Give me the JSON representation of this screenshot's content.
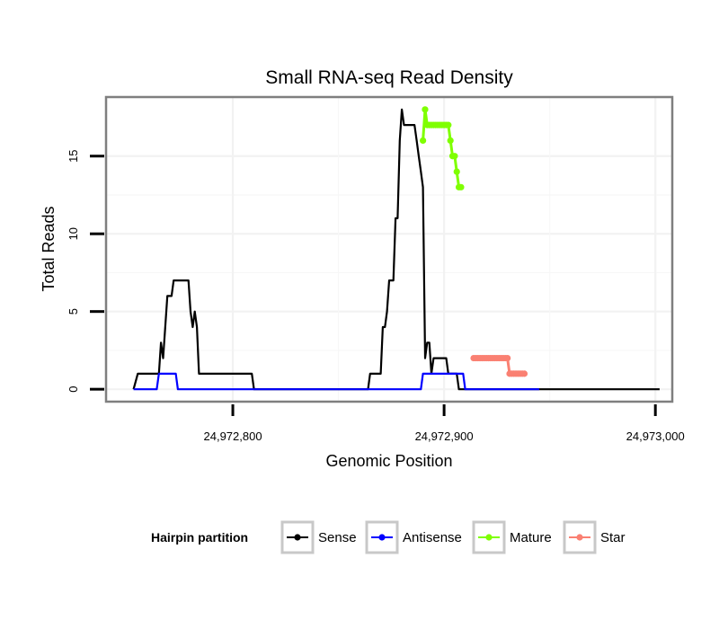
{
  "chart_data": {
    "type": "line",
    "title": "Small RNA-seq Read Density",
    "xlabel": "Genomic Position",
    "ylabel": "Total Reads",
    "xlim": [
      24972740,
      24973008
    ],
    "ylim": [
      -0.8,
      18.8
    ],
    "x_ticks": [
      24972800,
      24972900,
      24973000
    ],
    "x_tick_labels": [
      "24,972,800",
      "24,972,900",
      "24,973,000"
    ],
    "y_ticks": [
      0,
      5,
      10,
      15
    ],
    "y_tick_labels": [
      "0",
      "5",
      "10",
      "15"
    ],
    "grid": true,
    "legend": {
      "title": "Hairpin partition",
      "position": "bottom",
      "entries": [
        {
          "name": "Sense",
          "color": "#000000"
        },
        {
          "name": "Antisense",
          "color": "#0000ff"
        },
        {
          "name": "Mature",
          "color": "#7fff00"
        },
        {
          "name": "Star",
          "color": "#fa8072"
        }
      ]
    },
    "series": [
      {
        "name": "Sense",
        "color": "#000000",
        "kind": "line",
        "points": [
          [
            24972753,
            0
          ],
          [
            24972755,
            1
          ],
          [
            24972765,
            1
          ],
          [
            24972766,
            3
          ],
          [
            24972767,
            2
          ],
          [
            24972769,
            6
          ],
          [
            24972771,
            6
          ],
          [
            24972772,
            7
          ],
          [
            24972777,
            7
          ],
          [
            24972779,
            7
          ],
          [
            24972780,
            5
          ],
          [
            24972781,
            4
          ],
          [
            24972782,
            5
          ],
          [
            24972783,
            4
          ],
          [
            24972784,
            1
          ],
          [
            24972809,
            1
          ],
          [
            24972810,
            0
          ],
          [
            24972864,
            0
          ],
          [
            24972865,
            1
          ],
          [
            24972870,
            1
          ],
          [
            24972871,
            4
          ],
          [
            24972872,
            4
          ],
          [
            24972873,
            5
          ],
          [
            24972874,
            7
          ],
          [
            24972876,
            7
          ],
          [
            24972877,
            11
          ],
          [
            24972878,
            11
          ],
          [
            24972879,
            16
          ],
          [
            24972880,
            18
          ],
          [
            24972881,
            17
          ],
          [
            24972882,
            17
          ],
          [
            24972883,
            17
          ],
          [
            24972884,
            17
          ],
          [
            24972885,
            17
          ],
          [
            24972886,
            17
          ],
          [
            24972887,
            16
          ],
          [
            24972888,
            15
          ],
          [
            24972889,
            14
          ],
          [
            24972890,
            13
          ],
          [
            24972891,
            2
          ],
          [
            24972892,
            3
          ],
          [
            24972893,
            3
          ],
          [
            24972894,
            1
          ],
          [
            24972895,
            2
          ],
          [
            24972896,
            2
          ],
          [
            24972901,
            2
          ],
          [
            24972902,
            1
          ],
          [
            24972906,
            1
          ],
          [
            24972907,
            0
          ],
          [
            24973002,
            0
          ]
        ]
      },
      {
        "name": "Antisense",
        "color": "#0000ff",
        "kind": "line",
        "points": [
          [
            24972753,
            0
          ],
          [
            24972764,
            0
          ],
          [
            24972765,
            1
          ],
          [
            24972772,
            1
          ],
          [
            24972773,
            1
          ],
          [
            24972774,
            0
          ],
          [
            24972889,
            0
          ],
          [
            24972890,
            1
          ],
          [
            24972909,
            1
          ],
          [
            24972910,
            0
          ],
          [
            24972945,
            0
          ]
        ]
      },
      {
        "name": "Mature",
        "color": "#7fff00",
        "kind": "points",
        "points": [
          [
            24972890,
            16
          ],
          [
            24972891,
            18
          ],
          [
            24972892,
            17
          ],
          [
            24972893,
            17
          ],
          [
            24972894,
            17
          ],
          [
            24972895,
            17
          ],
          [
            24972896,
            17
          ],
          [
            24972897,
            17
          ],
          [
            24972898,
            17
          ],
          [
            24972899,
            17
          ],
          [
            24972900,
            17
          ],
          [
            24972901,
            17
          ],
          [
            24972902,
            17
          ],
          [
            24972903,
            16
          ],
          [
            24972904,
            15
          ],
          [
            24972905,
            15
          ],
          [
            24972906,
            14
          ],
          [
            24972907,
            13
          ],
          [
            24972908,
            13
          ]
        ]
      },
      {
        "name": "Star",
        "color": "#fa8072",
        "kind": "points",
        "points": [
          [
            24972914,
            2
          ],
          [
            24972915,
            2
          ],
          [
            24972916,
            2
          ],
          [
            24972917,
            2
          ],
          [
            24972918,
            2
          ],
          [
            24972919,
            2
          ],
          [
            24972920,
            2
          ],
          [
            24972921,
            2
          ],
          [
            24972922,
            2
          ],
          [
            24972923,
            2
          ],
          [
            24972924,
            2
          ],
          [
            24972925,
            2
          ],
          [
            24972926,
            2
          ],
          [
            24972927,
            2
          ],
          [
            24972928,
            2
          ],
          [
            24972929,
            2
          ],
          [
            24972930,
            2
          ],
          [
            24972931,
            1
          ],
          [
            24972932,
            1
          ],
          [
            24972933,
            1
          ],
          [
            24972934,
            1
          ],
          [
            24972935,
            1
          ],
          [
            24972936,
            1
          ],
          [
            24972937,
            1
          ],
          [
            24972938,
            1
          ]
        ]
      }
    ]
  }
}
